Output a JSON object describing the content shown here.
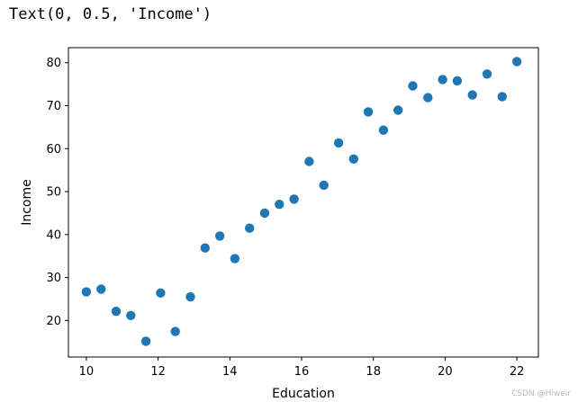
{
  "output_text": "Text(0, 0.5, 'Income')",
  "watermark": "CSDN @Hiweir",
  "chart_data": {
    "type": "scatter",
    "title": "",
    "xlabel": "Education",
    "ylabel": "Income",
    "xlim": [
      9.5,
      22.6
    ],
    "ylim": [
      11.5,
      83.5
    ],
    "xticks": [
      10,
      12,
      14,
      16,
      18,
      20,
      22
    ],
    "yticks": [
      20,
      30,
      40,
      50,
      60,
      70,
      80
    ],
    "grid": false,
    "marker_color": "#1f77b4",
    "x": [
      10.0,
      10.41,
      10.83,
      11.24,
      11.66,
      12.07,
      12.48,
      12.9,
      13.31,
      13.72,
      14.14,
      14.55,
      14.97,
      15.38,
      15.79,
      16.21,
      16.62,
      17.03,
      17.45,
      17.86,
      18.28,
      18.69,
      19.1,
      19.52,
      19.93,
      20.34,
      20.76,
      21.17,
      21.59,
      22.0
    ],
    "y": [
      26.66,
      27.31,
      22.13,
      21.17,
      15.19,
      26.4,
      17.44,
      25.51,
      36.88,
      39.67,
      34.4,
      41.5,
      44.98,
      47.04,
      48.25,
      57.03,
      51.49,
      61.34,
      57.58,
      68.55,
      64.31,
      68.96,
      74.61,
      71.87,
      76.1,
      75.78,
      72.49,
      77.36,
      72.12,
      80.26
    ]
  }
}
